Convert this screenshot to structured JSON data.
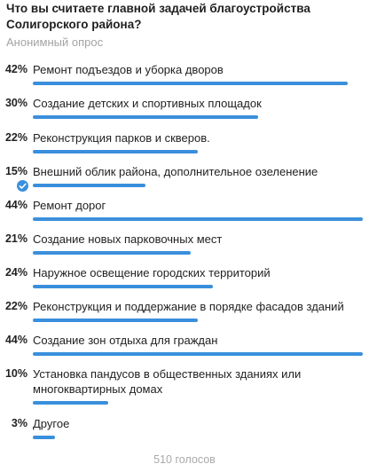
{
  "question": "Что вы считаете главной задачей благоустройства Солигорского района?",
  "poll_type": "Анонимный опрос",
  "accent_color": "#3a8fdc",
  "options": [
    {
      "percent": "42%",
      "value": 42,
      "label": "Ремонт подъездов и уборка дворов",
      "selected": false
    },
    {
      "percent": "30%",
      "value": 30,
      "label": "Создание детских и спортивных площадок",
      "selected": false
    },
    {
      "percent": "22%",
      "value": 22,
      "label": "Реконструкция парков и скверов.",
      "selected": false
    },
    {
      "percent": "15%",
      "value": 15,
      "label": "Внешний облик района, дополнительное озеленение",
      "selected": true
    },
    {
      "percent": "44%",
      "value": 44,
      "label": "Ремонт дорог",
      "selected": false
    },
    {
      "percent": "21%",
      "value": 21,
      "label": "Создание новых парковочных мест",
      "selected": false
    },
    {
      "percent": "24%",
      "value": 24,
      "label": "Наружное освещение городских территорий",
      "selected": false
    },
    {
      "percent": "22%",
      "value": 22,
      "label": "Реконструкция и поддержание в порядке фасадов зданий",
      "selected": false
    },
    {
      "percent": "44%",
      "value": 44,
      "label": "Создание зон отдыха для граждан",
      "selected": false
    },
    {
      "percent": "10%",
      "value": 10,
      "label": "Установка пандусов в общественных зданиях или многоквартирных домах",
      "selected": false
    },
    {
      "percent": "3%",
      "value": 3,
      "label": "Другое",
      "selected": false
    }
  ],
  "total_votes": "510 голосов"
}
